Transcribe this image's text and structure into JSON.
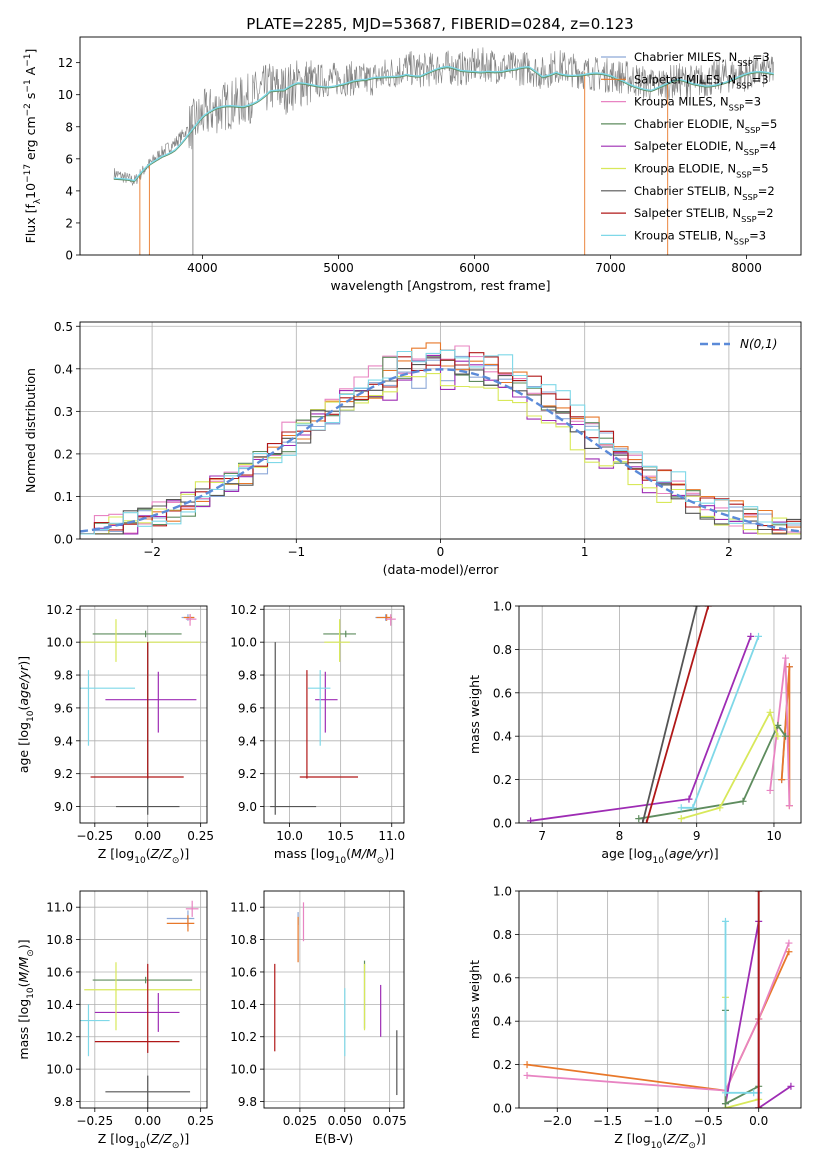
{
  "title": "PLATE=2285, MJD=53687, FIBERID=0284, z=0.123",
  "model_colors": [
    "#8ea9d8",
    "#e8782a",
    "#e884c2",
    "#5e8c5e",
    "#9e2cb4",
    "#d8e85a",
    "#555555",
    "#b01818",
    "#7fd8e8"
  ],
  "legend": [
    "Chabrier MILES, N$_{SSP}$=3",
    "Salpeter MILES, N$_{SSP}$=3",
    "Kroupa MILES, N$_{SSP}$=3",
    "Chabrier ELODIE, N$_{SSP}$=5",
    "Salpeter ELODIE, N$_{SSP}$=4",
    "Kroupa ELODIE, N$_{SSP}$=5",
    "Chabrier STELIB, N$_{SSP}$=2",
    "Salpeter STELIB, N$_{SSP}$=2",
    "Kroupa STELIB, N$_{SSP}$=3"
  ],
  "chart_data": [
    {
      "id": "spectrum",
      "type": "line",
      "xlabel": "wavelength [Angstrom, rest frame]",
      "ylabel": "Flux [f$_\\lambda$10$^{-17}$ erg cm$^{-2}$ s$^{-1}$ A$^{-1}$]",
      "xlim": [
        3100,
        8400
      ],
      "ylim": [
        0,
        13.6
      ],
      "xticks": [
        4000,
        5000,
        6000,
        7000,
        8000
      ],
      "yticks": [
        0,
        2,
        4,
        6,
        8,
        10,
        12
      ],
      "grid": false,
      "legend_loc": "upper right",
      "data_color": "#808080",
      "model_line_color": "#7fd8e8",
      "spectrum_x": [
        3350,
        3500,
        3600,
        3700,
        3800,
        3900,
        4000,
        4100,
        4200,
        4300,
        4400,
        4500,
        4600,
        4700,
        4800,
        4900,
        5000,
        5100,
        5200,
        5300,
        5400,
        5500,
        5600,
        5700,
        5800,
        5900,
        6000,
        6100,
        6200,
        6300,
        6400,
        6500,
        6600,
        6700,
        6800,
        6900,
        7000,
        7100,
        7200,
        7300,
        7400,
        7500,
        7600,
        7700,
        7800,
        7900,
        8000,
        8100,
        8200
      ],
      "spectrum_y": [
        5.1,
        4.6,
        5.6,
        6.4,
        7.0,
        7.9,
        8.7,
        9.1,
        9.4,
        9.6,
        10.0,
        10.5,
        10.3,
        10.7,
        10.8,
        10.9,
        11.0,
        11.0,
        10.9,
        11.1,
        11.4,
        11.7,
        11.5,
        11.6,
        11.7,
        11.6,
        11.8,
        11.9,
        11.7,
        11.6,
        11.7,
        11.3,
        11.8,
        11.6,
        11.4,
        11.3,
        11.2,
        11.1,
        10.9,
        10.6,
        10.7,
        10.9,
        10.8,
        10.9,
        11.1,
        11.2,
        11.3,
        11.4,
        11.5
      ],
      "dips": [
        {
          "x": 3540,
          "color": "#e8782a"
        },
        {
          "x": 3610,
          "color": "#e8782a"
        },
        {
          "x": 3930,
          "color": "#808080"
        },
        {
          "x": 6810,
          "color": "#e8782a"
        },
        {
          "x": 7420,
          "color": "#e8782a"
        }
      ]
    },
    {
      "id": "residuals",
      "type": "step",
      "xlabel": "(data-model)/error",
      "ylabel": "Normed distribution",
      "xlim": [
        -2.5,
        2.5
      ],
      "ylim": [
        0,
        0.51
      ],
      "xticks": [
        -2,
        -1,
        0,
        1,
        2
      ],
      "xtick_labels": [
        "−2",
        "−1",
        "0",
        "1",
        "2"
      ],
      "yticks": [
        0.0,
        0.1,
        0.2,
        0.3,
        0.4,
        0.5
      ],
      "ytick_labels": [
        "0.0",
        "0.1",
        "0.2",
        "0.3",
        "0.4",
        "0.5"
      ],
      "grid": true,
      "legend_loc": "upper right",
      "gaussian_label": "$\\mathcal{N}(0,1)$",
      "gaussian_color": "#5b8ad8",
      "bin_edges_start": -2.5,
      "bin_width": 0.1
    },
    {
      "id": "age_vs_Z",
      "type": "errorbar",
      "xlabel": "Z [log$_{10}$($Z/Z_\\odot$)]",
      "ylabel": "age  [log$_{10}$($age/yr$)]",
      "xlim": [
        -0.32,
        0.28
      ],
      "ylim": [
        8.9,
        10.22
      ],
      "xticks": [
        -0.25,
        0.0,
        0.25
      ],
      "xtick_labels": [
        "−0.25",
        "0.00",
        "0.25"
      ],
      "yticks": [
        9.0,
        9.2,
        9.4,
        9.6,
        9.8,
        10.0,
        10.2
      ],
      "ytick_labels": [
        "9.0",
        "9.2",
        "9.4",
        "9.6",
        "9.8",
        "10.0",
        "10.2"
      ],
      "grid": true,
      "points": [
        {
          "m": 0,
          "x": 0.19,
          "y": 10.15,
          "xerr": [
            0.03,
            0.03
          ],
          "yerr": [
            0.02,
            0.02
          ]
        },
        {
          "m": 1,
          "x": 0.2,
          "y": 10.15,
          "xerr": [
            0.03,
            0.02
          ],
          "yerr": [
            0.02,
            0.02
          ]
        },
        {
          "m": 2,
          "x": 0.2,
          "y": 10.14,
          "xerr": [
            0.02,
            0.03
          ],
          "yerr": [
            0.04,
            0.03
          ]
        },
        {
          "m": 3,
          "x": -0.01,
          "y": 10.05,
          "xerr": [
            0.25,
            0.17
          ],
          "yerr": [
            0.02,
            0.02
          ]
        },
        {
          "m": 4,
          "x": 0.05,
          "y": 9.65,
          "xerr": [
            0.25,
            0.18
          ],
          "yerr": [
            0.2,
            0.17
          ]
        },
        {
          "m": 5,
          "x": -0.15,
          "y": 10.0,
          "xerr": [
            0.18,
            0.4
          ],
          "yerr": [
            0.12,
            0.14
          ]
        },
        {
          "m": 6,
          "x": 0.0,
          "y": 9.0,
          "xerr": [
            0.15,
            0.15
          ],
          "yerr": [
            0.05,
            1.0
          ]
        },
        {
          "m": 7,
          "x": 0.0,
          "y": 9.18,
          "xerr": [
            0.27,
            0.17
          ],
          "yerr": [
            0.01,
            0.82
          ]
        },
        {
          "m": 8,
          "x": -0.28,
          "y": 9.72,
          "xerr": [
            0.05,
            0.22
          ],
          "yerr": [
            0.35,
            0.11
          ]
        }
      ]
    },
    {
      "id": "age_vs_mass",
      "type": "errorbar",
      "xlabel": "mass [log$_{10}$($M/M_\\odot$)]",
      "ylabel": "",
      "xlim": [
        9.75,
        11.12
      ],
      "ylim": [
        8.9,
        10.22
      ],
      "xticks": [
        10.0,
        10.5,
        11.0
      ],
      "xtick_labels": [
        "10.0",
        "10.5",
        "11.0"
      ],
      "yticks": [
        9.0,
        9.2,
        9.4,
        9.6,
        9.8,
        10.0,
        10.2
      ],
      "ytick_labels": [
        "9.0",
        "9.2",
        "9.4",
        "9.6",
        "9.8",
        "10.0",
        "10.2"
      ],
      "grid": true,
      "points": [
        {
          "m": 0,
          "x": 10.94,
          "y": 10.15,
          "xerr": [
            0.1,
            0.05
          ],
          "yerr": [
            0.02,
            0.02
          ]
        },
        {
          "m": 1,
          "x": 10.95,
          "y": 10.15,
          "xerr": [
            0.1,
            0.05
          ],
          "yerr": [
            0.02,
            0.02
          ]
        },
        {
          "m": 2,
          "x": 10.99,
          "y": 10.14,
          "xerr": [
            0.05,
            0.05
          ],
          "yerr": [
            0.04,
            0.03
          ]
        },
        {
          "m": 3,
          "x": 10.55,
          "y": 10.05,
          "xerr": [
            0.22,
            0.1
          ],
          "yerr": [
            0.02,
            0.02
          ]
        },
        {
          "m": 4,
          "x": 10.35,
          "y": 9.65,
          "xerr": [
            0.1,
            0.12
          ],
          "yerr": [
            0.2,
            0.17
          ]
        },
        {
          "m": 5,
          "x": 10.49,
          "y": 10.0,
          "xerr": [
            0.15,
            0.1
          ],
          "yerr": [
            0.12,
            0.14
          ]
        },
        {
          "m": 6,
          "x": 9.86,
          "y": 9.0,
          "xerr": [
            0.05,
            0.4
          ],
          "yerr": [
            0.05,
            1.0
          ]
        },
        {
          "m": 7,
          "x": 10.17,
          "y": 9.18,
          "xerr": [
            0.07,
            0.5
          ],
          "yerr": [
            0.01,
            0.65
          ]
        },
        {
          "m": 8,
          "x": 10.3,
          "y": 9.72,
          "xerr": [
            0.12,
            0.1
          ],
          "yerr": [
            0.35,
            0.11
          ]
        }
      ]
    },
    {
      "id": "weight_vs_age",
      "type": "line",
      "xlabel": "age  [log$_{10}$($age/yr$)]",
      "ylabel": "mass weight",
      "xlim": [
        6.7,
        10.35
      ],
      "ylim": [
        0,
        1
      ],
      "xticks": [
        7,
        8,
        9,
        10
      ],
      "xtick_labels": [
        "7",
        "8",
        "9",
        "10"
      ],
      "yticks": [
        0,
        0.2,
        0.4,
        0.6,
        0.8,
        1.0
      ],
      "ytick_labels": [
        "0.0",
        "0.2",
        "0.4",
        "0.6",
        "0.8",
        "1.0"
      ],
      "grid": true,
      "series": [
        {
          "m": 0,
          "x": [
            10.1,
            10.2
          ],
          "y": [
            0.2,
            0.72
          ]
        },
        {
          "m": 1,
          "x": [
            10.1,
            10.2,
            10.2
          ],
          "y": [
            0.2,
            0.72,
            0.08
          ]
        },
        {
          "m": 2,
          "x": [
            9.95,
            10.15,
            10.2
          ],
          "y": [
            0.15,
            0.76,
            0.08
          ]
        },
        {
          "m": 3,
          "x": [
            8.25,
            9.6,
            10.05,
            10.15
          ],
          "y": [
            0.02,
            0.1,
            0.45,
            0.4
          ]
        },
        {
          "m": 4,
          "x": [
            6.85,
            8.9,
            9.7
          ],
          "y": [
            0.01,
            0.11,
            0.86
          ]
        },
        {
          "m": 5,
          "x": [
            8.8,
            9.3,
            9.95,
            10.05
          ],
          "y": [
            0.02,
            0.07,
            0.51,
            0.4
          ]
        },
        {
          "m": 6,
          "x": [
            8.3,
            9.0
          ],
          "y": [
            0.0,
            1.0
          ]
        },
        {
          "m": 7,
          "x": [
            8.35,
            9.15
          ],
          "y": [
            0.0,
            1.0
          ]
        },
        {
          "m": 8,
          "x": [
            8.8,
            8.95,
            9.8
          ],
          "y": [
            0.07,
            0.07,
            0.86
          ]
        }
      ]
    },
    {
      "id": "mass_vs_Z",
      "type": "errorbar",
      "xlabel": "Z [log$_{10}$($Z/Z_\\odot$)]",
      "ylabel": "mass [log$_{10}$($M/M_\\odot$)]",
      "xlim": [
        -0.32,
        0.28
      ],
      "ylim": [
        9.76,
        11.1
      ],
      "xticks": [
        -0.25,
        0.0,
        0.25
      ],
      "xtick_labels": [
        "−0.25",
        "0.00",
        "0.25"
      ],
      "yticks": [
        9.8,
        10.0,
        10.2,
        10.4,
        10.6,
        10.8,
        11.0
      ],
      "ytick_labels": [
        "9.8",
        "10.0",
        "10.2",
        "10.4",
        "10.6",
        "10.8",
        "11.0"
      ],
      "grid": true,
      "points": [
        {
          "m": 0,
          "x": 0.19,
          "y": 10.93,
          "xerr": [
            0.1,
            0.03
          ],
          "yerr": [
            0.05,
            0.05
          ]
        },
        {
          "m": 1,
          "x": 0.19,
          "y": 10.9,
          "xerr": [
            0.1,
            0.03
          ],
          "yerr": [
            0.05,
            0.05
          ]
        },
        {
          "m": 2,
          "x": 0.21,
          "y": 10.99,
          "xerr": [
            0.03,
            0.03
          ],
          "yerr": [
            0.05,
            0.05
          ]
        },
        {
          "m": 3,
          "x": -0.01,
          "y": 10.55,
          "xerr": [
            0.25,
            0.22
          ],
          "yerr": [
            0.02,
            0.02
          ]
        },
        {
          "m": 4,
          "x": 0.05,
          "y": 10.35,
          "xerr": [
            0.3,
            0.1
          ],
          "yerr": [
            0.12,
            0.12
          ]
        },
        {
          "m": 5,
          "x": -0.15,
          "y": 10.49,
          "xerr": [
            0.15,
            0.4
          ],
          "yerr": [
            0.25,
            0.17
          ]
        },
        {
          "m": 6,
          "x": 0.0,
          "y": 9.86,
          "xerr": [
            0.2,
            0.2
          ],
          "yerr": [
            0.1,
            0.1
          ]
        },
        {
          "m": 7,
          "x": 0.0,
          "y": 10.17,
          "xerr": [
            0.25,
            0.15
          ],
          "yerr": [
            0.07,
            0.48
          ]
        },
        {
          "m": 8,
          "x": -0.28,
          "y": 10.3,
          "xerr": [
            0.1,
            0.1
          ],
          "yerr": [
            0.22,
            0.1
          ]
        }
      ]
    },
    {
      "id": "mass_vs_ebv",
      "type": "errorbar",
      "xlabel": "E(B-V)",
      "ylabel": "",
      "xlim": [
        0.005,
        0.083
      ],
      "ylim": [
        9.76,
        11.1
      ],
      "xticks": [
        0.025,
        0.05,
        0.075
      ],
      "xtick_labels": [
        "0.025",
        "0.050",
        "0.075"
      ],
      "yticks": [
        9.8,
        10.0,
        10.2,
        10.4,
        10.6,
        10.8,
        11.0
      ],
      "ytick_labels": [
        "9.8",
        "10.0",
        "10.2",
        "10.4",
        "10.6",
        "10.8",
        "11.0"
      ],
      "grid": true,
      "points": [
        {
          "m": 0,
          "x": 0.024,
          "y": 10.93,
          "xerr": [
            0,
            0
          ],
          "yerr": [
            0.04,
            0.04
          ]
        },
        {
          "m": 1,
          "x": 0.024,
          "y": 10.8,
          "xerr": [
            0,
            0
          ],
          "yerr": [
            0.14,
            0.14
          ]
        },
        {
          "m": 2,
          "x": 0.027,
          "y": 10.9,
          "xerr": [
            0,
            0
          ],
          "yerr": [
            0.11,
            0.13
          ]
        },
        {
          "m": 3,
          "x": 0.061,
          "y": 10.47,
          "xerr": [
            0,
            0
          ],
          "yerr": [
            0.22,
            0.2
          ]
        },
        {
          "m": 4,
          "x": 0.07,
          "y": 10.36,
          "xerr": [
            0,
            0
          ],
          "yerr": [
            0.16,
            0.16
          ]
        },
        {
          "m": 5,
          "x": 0.061,
          "y": 10.47,
          "xerr": [
            0,
            0
          ],
          "yerr": [
            0.23,
            0.18
          ]
        },
        {
          "m": 6,
          "x": 0.079,
          "y": 10.04,
          "xerr": [
            0,
            0
          ],
          "yerr": [
            0.2,
            0.2
          ]
        },
        {
          "m": 7,
          "x": 0.011,
          "y": 10.38,
          "xerr": [
            0,
            0
          ],
          "yerr": [
            0.27,
            0.27
          ]
        },
        {
          "m": 8,
          "x": 0.05,
          "y": 10.3,
          "xerr": [
            0,
            0
          ],
          "yerr": [
            0.22,
            0.2
          ]
        }
      ]
    },
    {
      "id": "weight_vs_Z",
      "type": "line",
      "xlabel": "Z [log$_{10}$($Z/Z_\\odot$)]",
      "ylabel": "mass weight",
      "xlim": [
        -2.38,
        0.42
      ],
      "ylim": [
        0,
        1
      ],
      "xticks": [
        -2.0,
        -1.5,
        -1.0,
        -0.5,
        0.0
      ],
      "xtick_labels": [
        "−2.0",
        "−1.5",
        "−1.0",
        "−0.5",
        "0.0"
      ],
      "yticks": [
        0,
        0.2,
        0.4,
        0.6,
        0.8,
        1.0
      ],
      "ytick_labels": [
        "0.0",
        "0.2",
        "0.4",
        "0.6",
        "0.8",
        "1.0"
      ],
      "grid": true,
      "series": [
        {
          "m": 1,
          "x": [
            -2.3,
            -0.33,
            0.0,
            0.3
          ],
          "y": [
            0.2,
            0.08,
            0.41,
            0.72
          ]
        },
        {
          "m": 2,
          "x": [
            -2.3,
            -0.33,
            0.0,
            0.3
          ],
          "y": [
            0.15,
            0.08,
            0.41,
            0.76
          ]
        },
        {
          "m": 4,
          "x": [
            -0.33,
            0.0,
            0.0,
            0.32
          ],
          "y": [
            0.02,
            0.86,
            0.0,
            0.1
          ]
        },
        {
          "m": 5,
          "x": [
            -0.33,
            -0.33,
            0.0
          ],
          "y": [
            0.51,
            0.0,
            0.04
          ]
        },
        {
          "m": 3,
          "x": [
            -0.33,
            -0.33,
            0.0
          ],
          "y": [
            0.45,
            0.02,
            0.1
          ]
        },
        {
          "m": 8,
          "x": [
            -0.33,
            -0.33,
            -0.05,
            0.0
          ],
          "y": [
            0.86,
            0.07,
            0.07,
            0.07
          ]
        },
        {
          "m": 6,
          "x": [
            0.0,
            0.0
          ],
          "y": [
            0.0,
            1.0
          ]
        },
        {
          "m": 7,
          "x": [
            0.0,
            0.0
          ],
          "y": [
            0.0,
            1.0
          ]
        }
      ]
    }
  ]
}
